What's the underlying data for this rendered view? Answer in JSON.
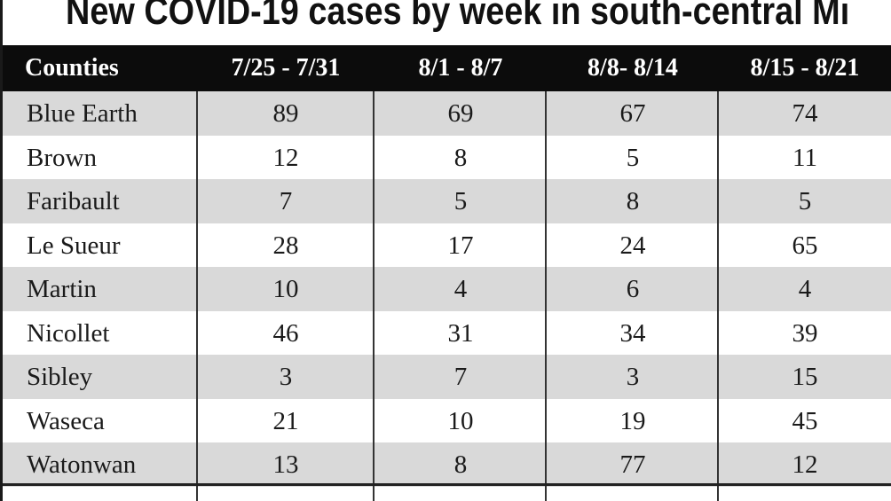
{
  "chart_data": {
    "type": "table",
    "title": "New COVID-19 cases by week in south-central Mi",
    "columns": [
      "Counties",
      "7/25 - 7/31",
      "8/1 - 8/7",
      "8/8- 8/14",
      "8/15 - 8/21"
    ],
    "rows": [
      {
        "county": "Blue Earth",
        "values": [
          "89",
          "69",
          "67",
          "74"
        ]
      },
      {
        "county": "Brown",
        "values": [
          "12",
          "8",
          "5",
          "11"
        ]
      },
      {
        "county": "Faribault",
        "values": [
          "7",
          "5",
          "8",
          "5"
        ]
      },
      {
        "county": "Le Sueur",
        "values": [
          "28",
          "17",
          "24",
          "65"
        ]
      },
      {
        "county": "Martin",
        "values": [
          "10",
          "4",
          "6",
          "4"
        ]
      },
      {
        "county": "Nicollet",
        "values": [
          "46",
          "31",
          "34",
          "39"
        ]
      },
      {
        "county": "Sibley",
        "values": [
          "3",
          "7",
          "3",
          "15"
        ]
      },
      {
        "county": "Waseca",
        "values": [
          "21",
          "10",
          "19",
          "45"
        ]
      },
      {
        "county": "Watonwan",
        "values": [
          "13",
          "8",
          "77",
          "12"
        ]
      }
    ],
    "colors": {
      "header_bg": "#0c0c0c",
      "header_text": "#ffffff",
      "shade_row": "#d9d9d9"
    }
  }
}
